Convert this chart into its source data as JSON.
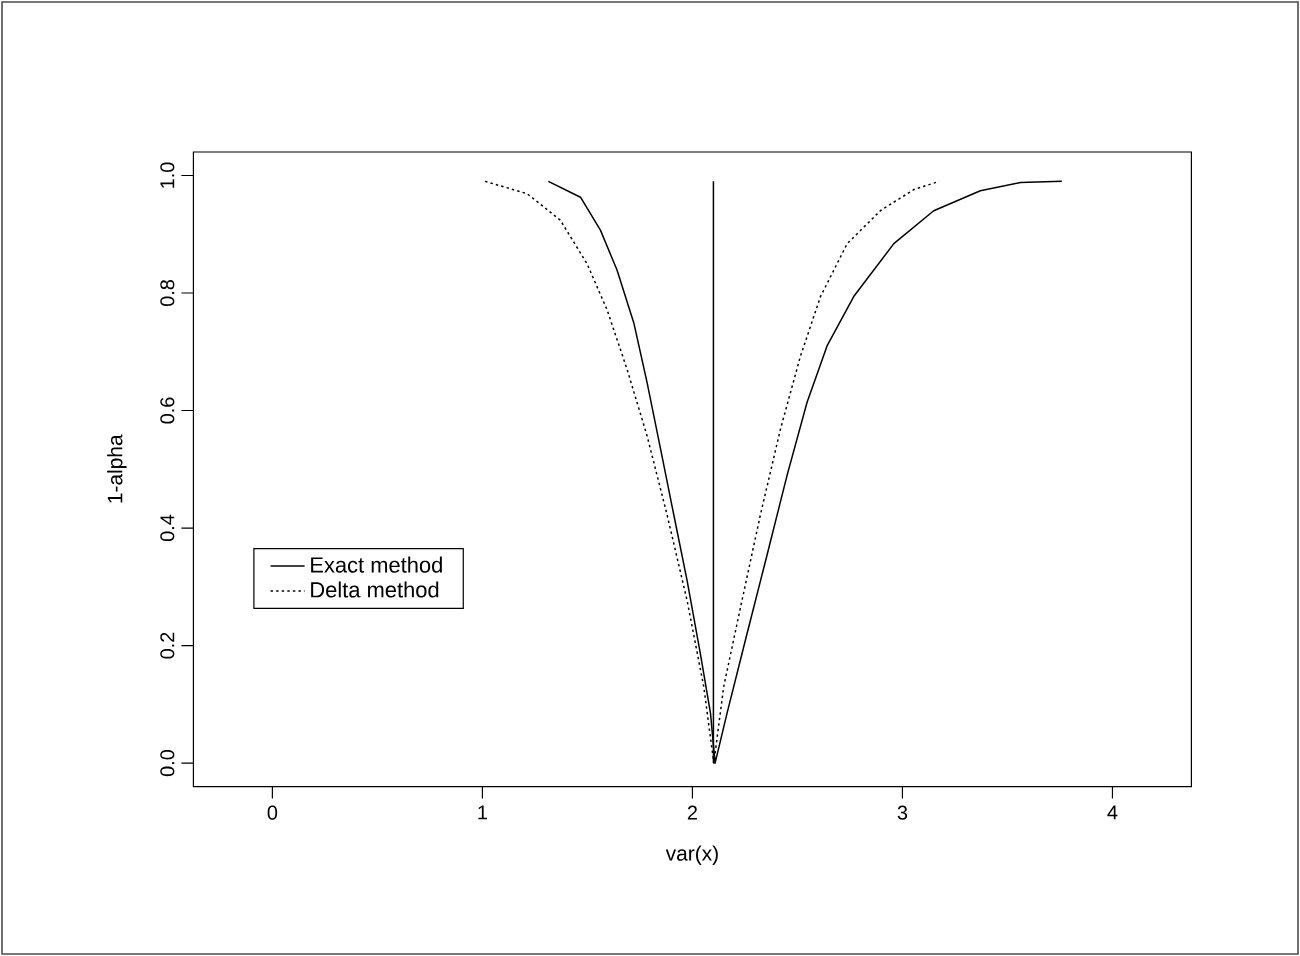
{
  "chart_data": {
    "type": "line",
    "xlabel": "var(x)",
    "ylabel": "1-alpha",
    "xlim": [
      -0.376,
      4.376
    ],
    "ylim": [
      -0.04,
      1.04
    ],
    "xticks": [
      0,
      1,
      2,
      3,
      4
    ],
    "yticks": [
      {
        "value": 0,
        "label": "0.0"
      },
      0.2,
      0.4,
      0.6,
      0.8,
      {
        "value": 1,
        "label": "1.0"
      }
    ],
    "legend": "left",
    "grid": false,
    "marker": "none",
    "series": [
      {
        "name": "Exact method",
        "color": "#000000",
        "line_style": "solid",
        "x": [
          1.314,
          1.467,
          1.562,
          1.641,
          1.721,
          1.784,
          1.848,
          1.911,
          1.975,
          2.038,
          2.086,
          2.108,
          2.165,
          2.26,
          2.356,
          2.451,
          2.546,
          2.641,
          2.768,
          2.959,
          3.149,
          3.371,
          3.562,
          3.759
        ],
        "values": [
          0.99,
          0.963,
          0.907,
          0.839,
          0.749,
          0.648,
          0.535,
          0.423,
          0.31,
          0.186,
          0.085,
          0.0,
          0.085,
          0.22,
          0.355,
          0.49,
          0.614,
          0.71,
          0.794,
          0.884,
          0.94,
          0.974,
          0.988,
          0.99
        ]
      },
      {
        "name": "Delta method",
        "color": "#000000",
        "line_style": "dotted",
        "x": [
          1.013,
          1.213,
          1.371,
          1.498,
          1.594,
          1.689,
          1.784,
          1.879,
          1.975,
          2.054,
          2.102,
          2.149,
          2.229,
          2.324,
          2.419,
          2.514,
          2.61,
          2.737,
          2.895,
          3.054,
          3.175
        ],
        "values": [
          0.99,
          0.969,
          0.924,
          0.85,
          0.771,
          0.67,
          0.557,
          0.423,
          0.276,
          0.13,
          0.0,
          0.13,
          0.265,
          0.423,
          0.568,
          0.692,
          0.794,
          0.884,
          0.94,
          0.976,
          0.99
        ]
      },
      {
        "color": "#000000",
        "line_style": "solid",
        "x": [
          2.1,
          2.1
        ],
        "values": [
          0.0,
          0.99
        ]
      }
    ]
  }
}
